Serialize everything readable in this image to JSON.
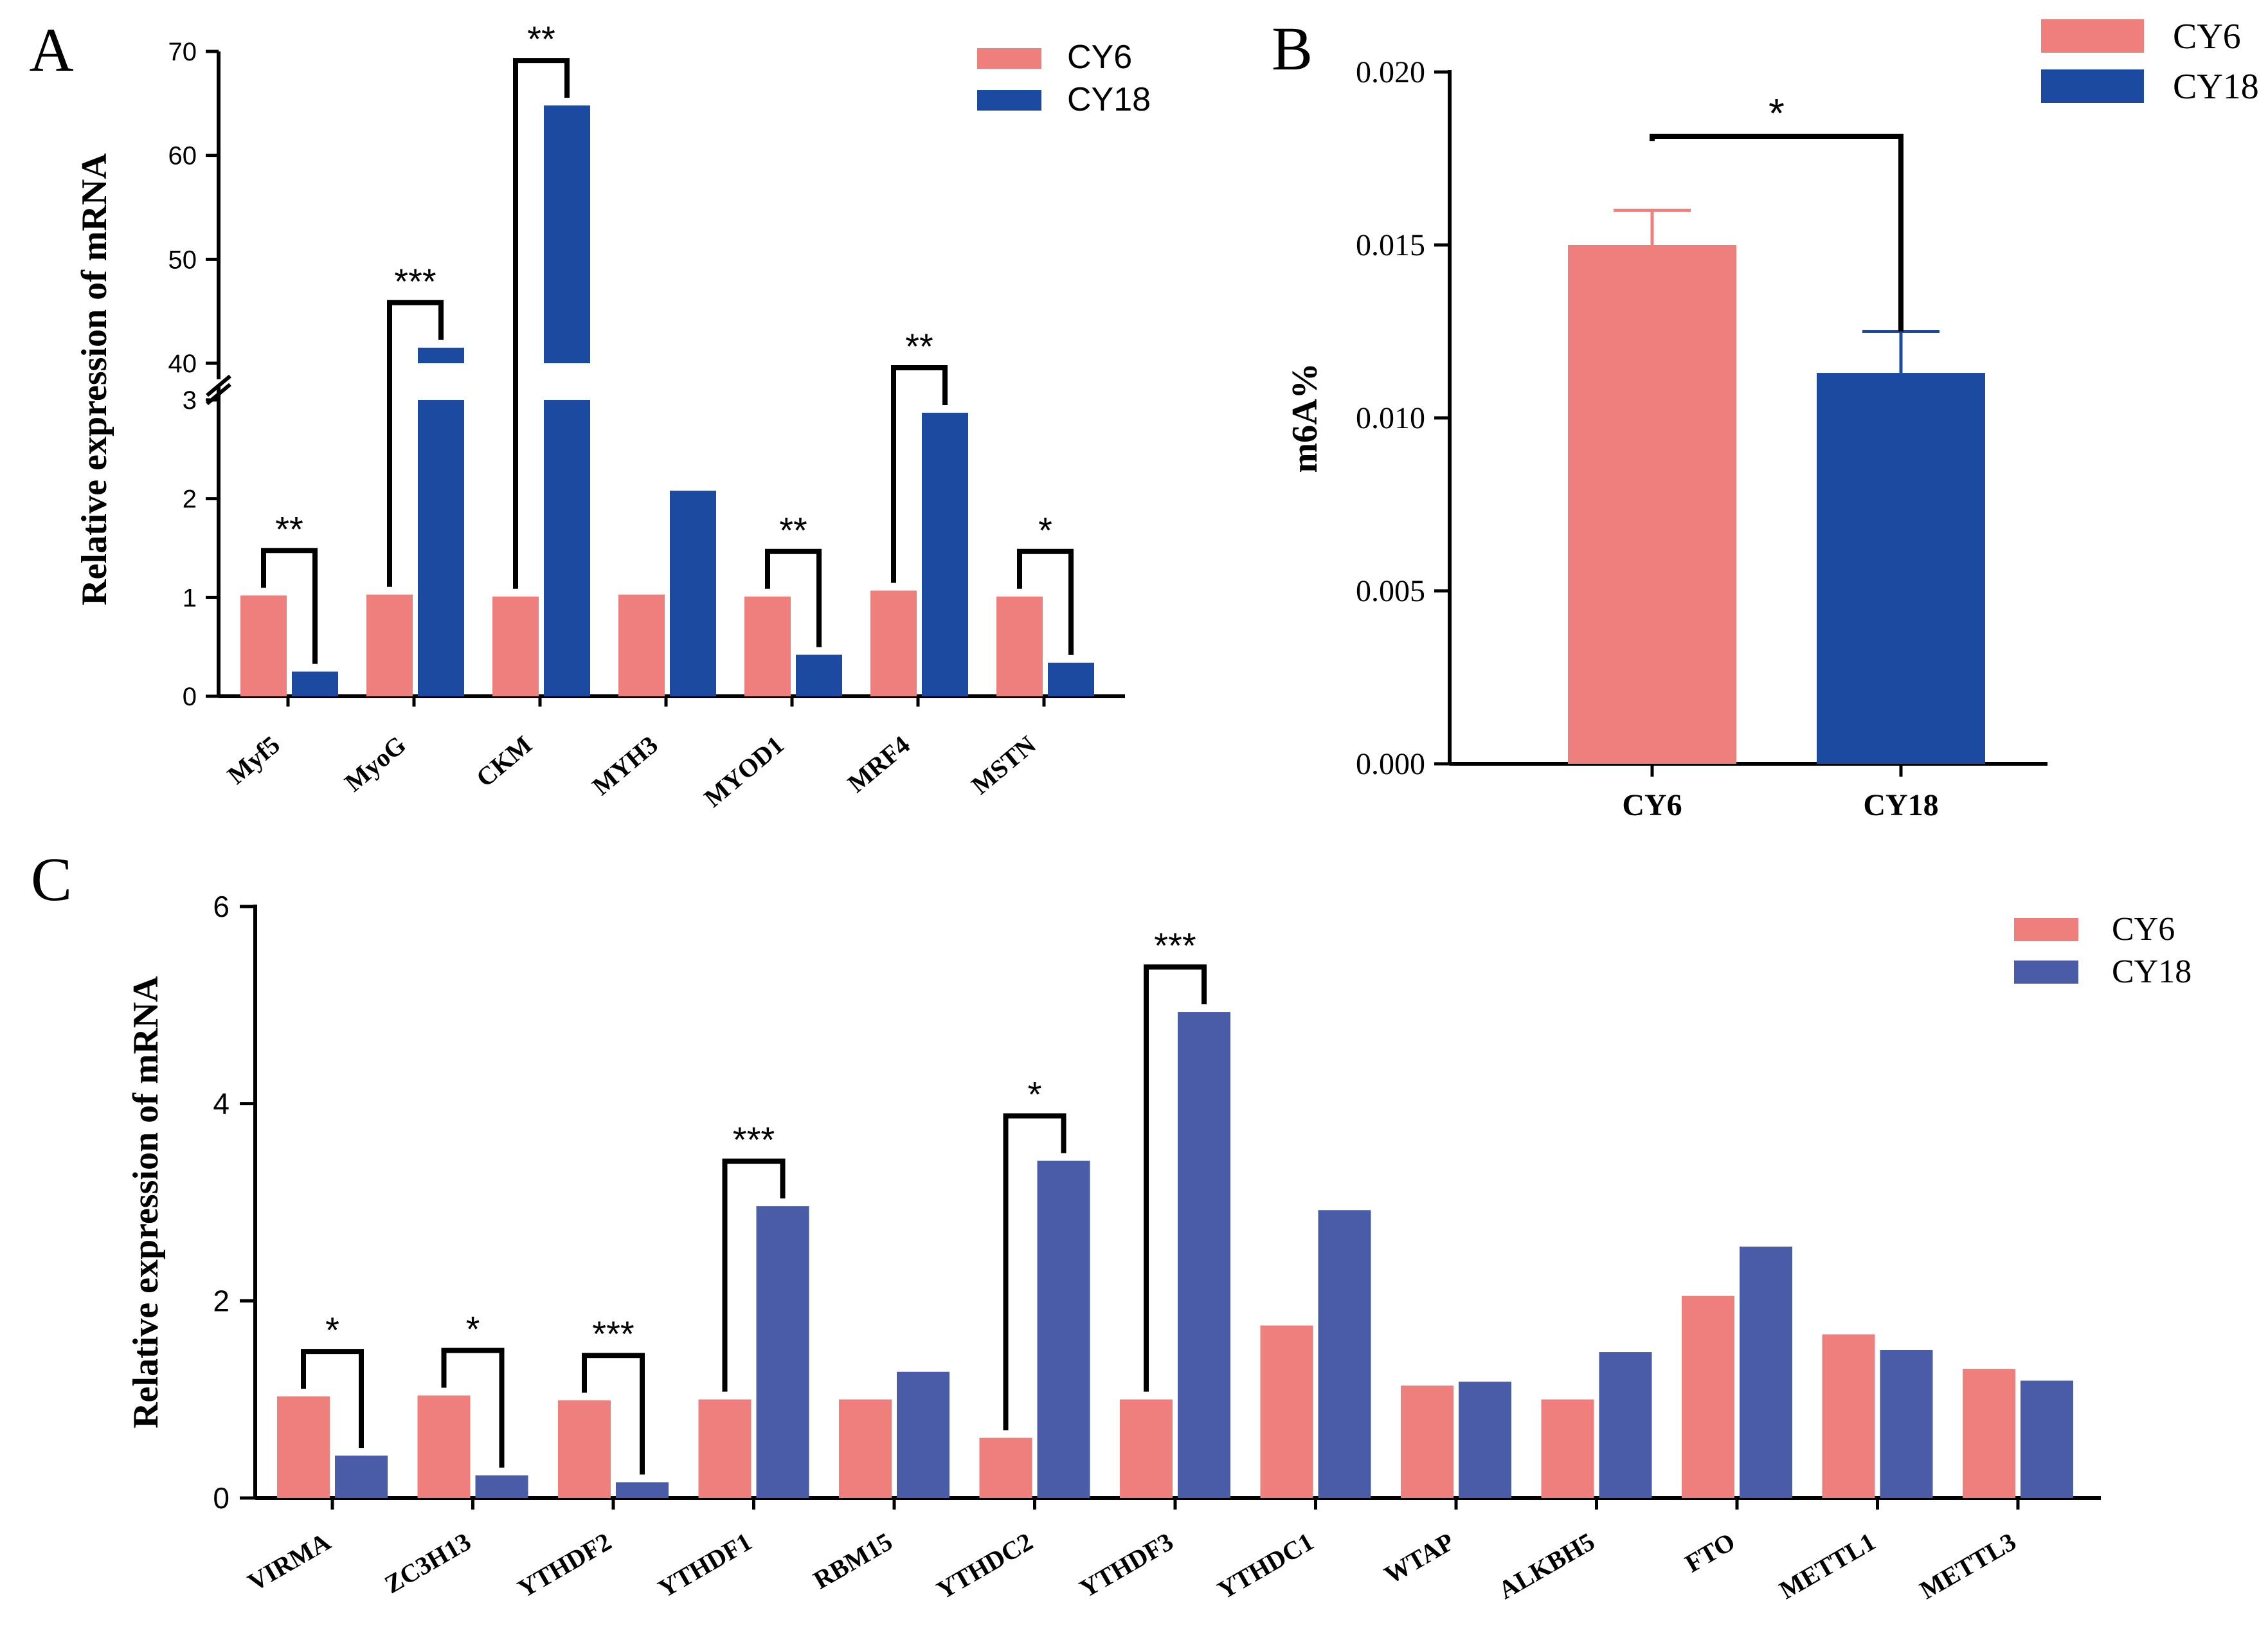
{
  "colors": {
    "cy6": "#ee7f7c",
    "cy18_dark": "#1c4aa0",
    "cy18_c": "#4a5ba8",
    "axis": "#000000"
  },
  "chart_data": [
    {
      "panel": "A",
      "type": "bar",
      "ylabel": "Relative expression of mRNA",
      "y_axis": "broken",
      "ylim_lower": [
        0,
        3
      ],
      "ylim_upper": [
        40,
        70
      ],
      "yticks_lower": [
        "0",
        "1",
        "2",
        "3"
      ],
      "yticks_upper": [
        "40",
        "50",
        "60",
        "70"
      ],
      "categories": [
        "Myf5",
        "MyoG",
        "CKM",
        "MYH3",
        "MYOD1",
        "MRF4",
        "MSTN"
      ],
      "series": [
        {
          "name": "CY6",
          "values": [
            1.02,
            1.03,
            1.01,
            1.03,
            1.01,
            1.07,
            1.01
          ]
        },
        {
          "name": "CY18",
          "values": [
            0.25,
            41.5,
            64.8,
            2.08,
            0.42,
            2.87,
            0.34
          ]
        }
      ],
      "significance": [
        "**",
        "***",
        "**",
        "",
        "**",
        "**",
        "*"
      ],
      "legend": [
        "CY6",
        "CY18"
      ]
    },
    {
      "panel": "B",
      "type": "bar",
      "ylabel": "m6A%",
      "ylim": [
        0,
        0.02
      ],
      "yticks": [
        "0.000",
        "0.005",
        "0.010",
        "0.015",
        "0.020"
      ],
      "categories": [
        "CY6",
        "CY18"
      ],
      "values": [
        0.015,
        0.0113
      ],
      "errors": [
        0.001,
        0.0012
      ],
      "significance": "*",
      "legend": [
        "CY6",
        "CY18"
      ]
    },
    {
      "panel": "C",
      "type": "bar",
      "ylabel": "Relative expression of mRNA",
      "ylim": [
        0,
        6
      ],
      "yticks": [
        "0",
        "2",
        "4",
        "6"
      ],
      "categories": [
        "VIRMA",
        "ZC3H13",
        "YTHDF2",
        "YTHDF1",
        "RBM15",
        "YTHDC2",
        "YTHDF3",
        "YTHDC1",
        "WTAP",
        "ALKBH5",
        "FTO",
        "METTL1",
        "METTL3"
      ],
      "series": [
        {
          "name": "CY6",
          "values": [
            1.03,
            1.04,
            0.99,
            1.0,
            1.0,
            0.61,
            1.0,
            1.75,
            1.14,
            1.0,
            2.05,
            1.66,
            1.31
          ]
        },
        {
          "name": "CY18",
          "values": [
            0.43,
            0.23,
            0.16,
            2.96,
            1.28,
            3.42,
            4.93,
            2.92,
            1.18,
            1.48,
            2.55,
            1.5,
            1.19
          ]
        }
      ],
      "significance": [
        "*",
        "*",
        "***",
        "***",
        "",
        "*",
        "***",
        "",
        "",
        "",
        "",
        "",
        ""
      ],
      "legend": [
        "CY6",
        "CY18"
      ]
    }
  ]
}
